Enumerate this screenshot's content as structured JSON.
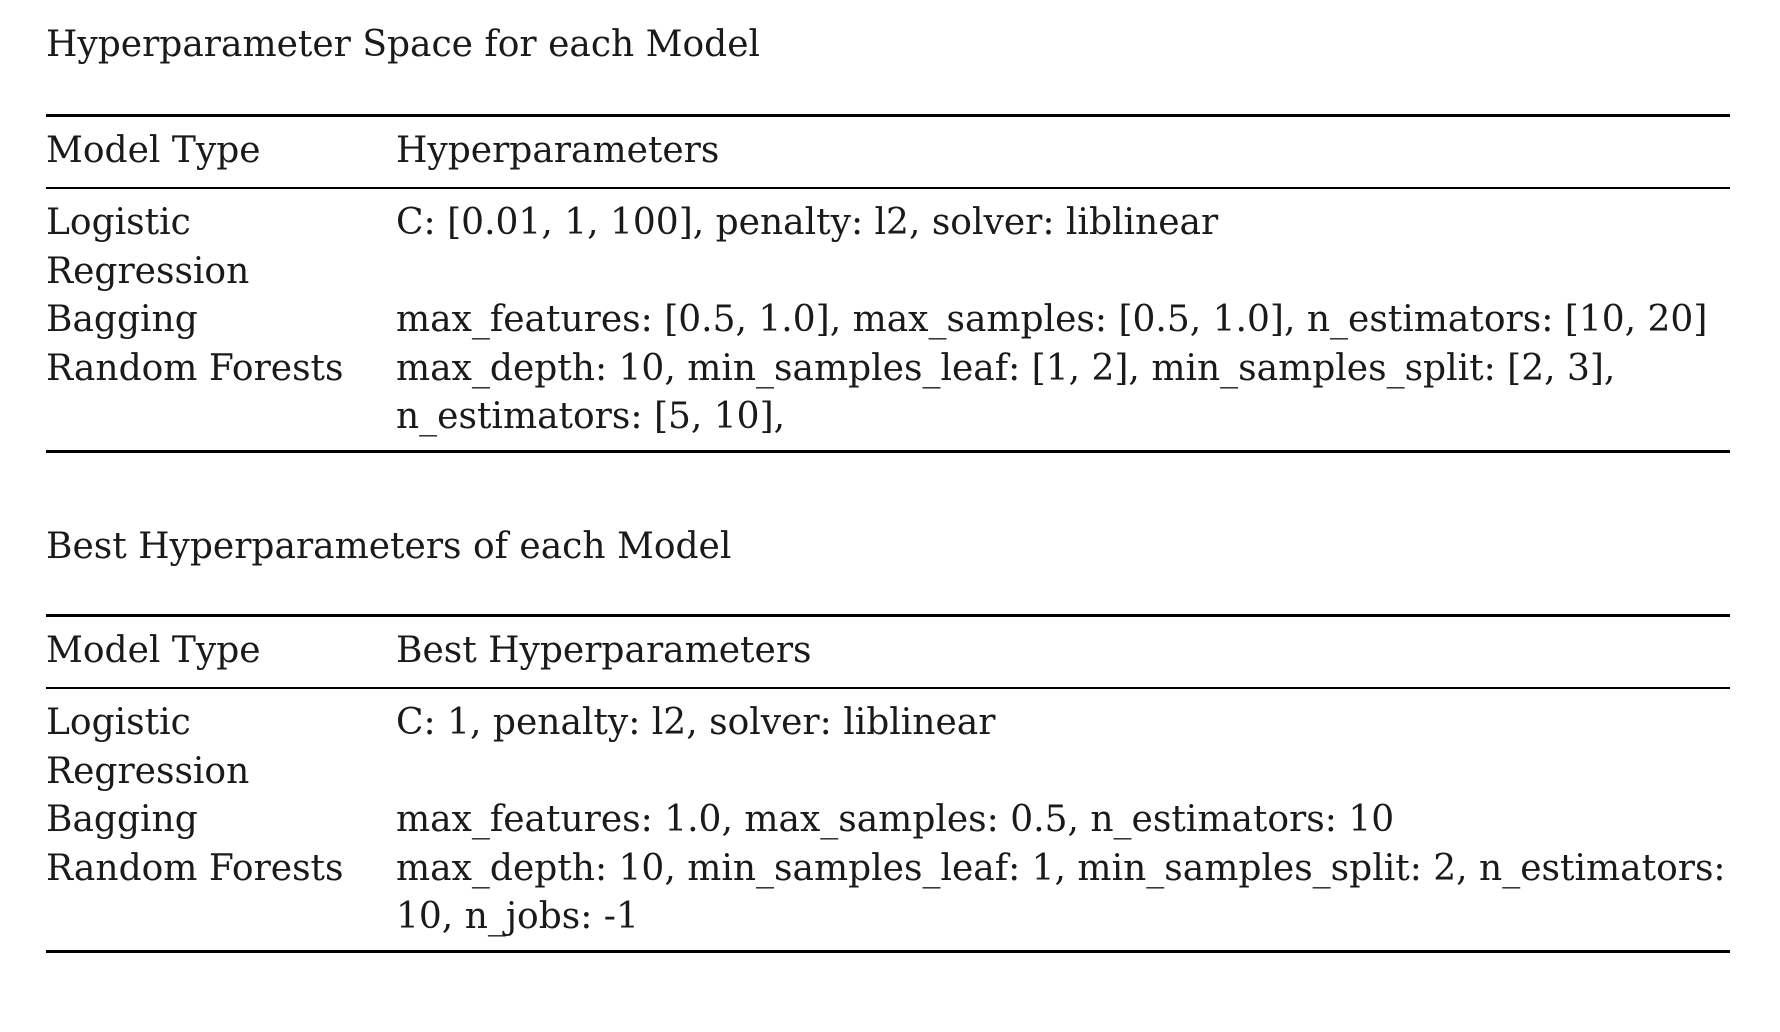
{
  "table1": {
    "caption": "Hyperparameter Space for each Model",
    "headers": [
      "Model Type",
      "Hyperparameters"
    ],
    "rows": [
      {
        "model": "Logistic Regression",
        "params": "C: [0.01, 1, 100], penalty: l2, solver: liblinear"
      },
      {
        "model": "Bagging",
        "params": "max_features: [0.5, 1.0], max_samples: [0.5, 1.0], n_estimators: [10, 20]"
      },
      {
        "model": "Random Forests",
        "params": "max_depth: 10, min_samples_leaf: [1, 2], min_samples_split: [2, 3], n_estimators: [5, 10],"
      }
    ]
  },
  "table2": {
    "caption": "Best Hyperparameters of each Model",
    "headers": [
      "Model Type",
      "Best Hyperparameters"
    ],
    "rows": [
      {
        "model": "Logistic Regression",
        "params": "C: 1, penalty: l2, solver: liblinear"
      },
      {
        "model": "Bagging",
        "params": "max_features: 1.0, max_samples: 0.5, n_estimators: 10"
      },
      {
        "model": "Random Forests",
        "params": "max_depth: 10, min_samples_leaf: 1, min_samples_split: 2, n_estimators: 10, n_jobs: -1"
      }
    ]
  }
}
